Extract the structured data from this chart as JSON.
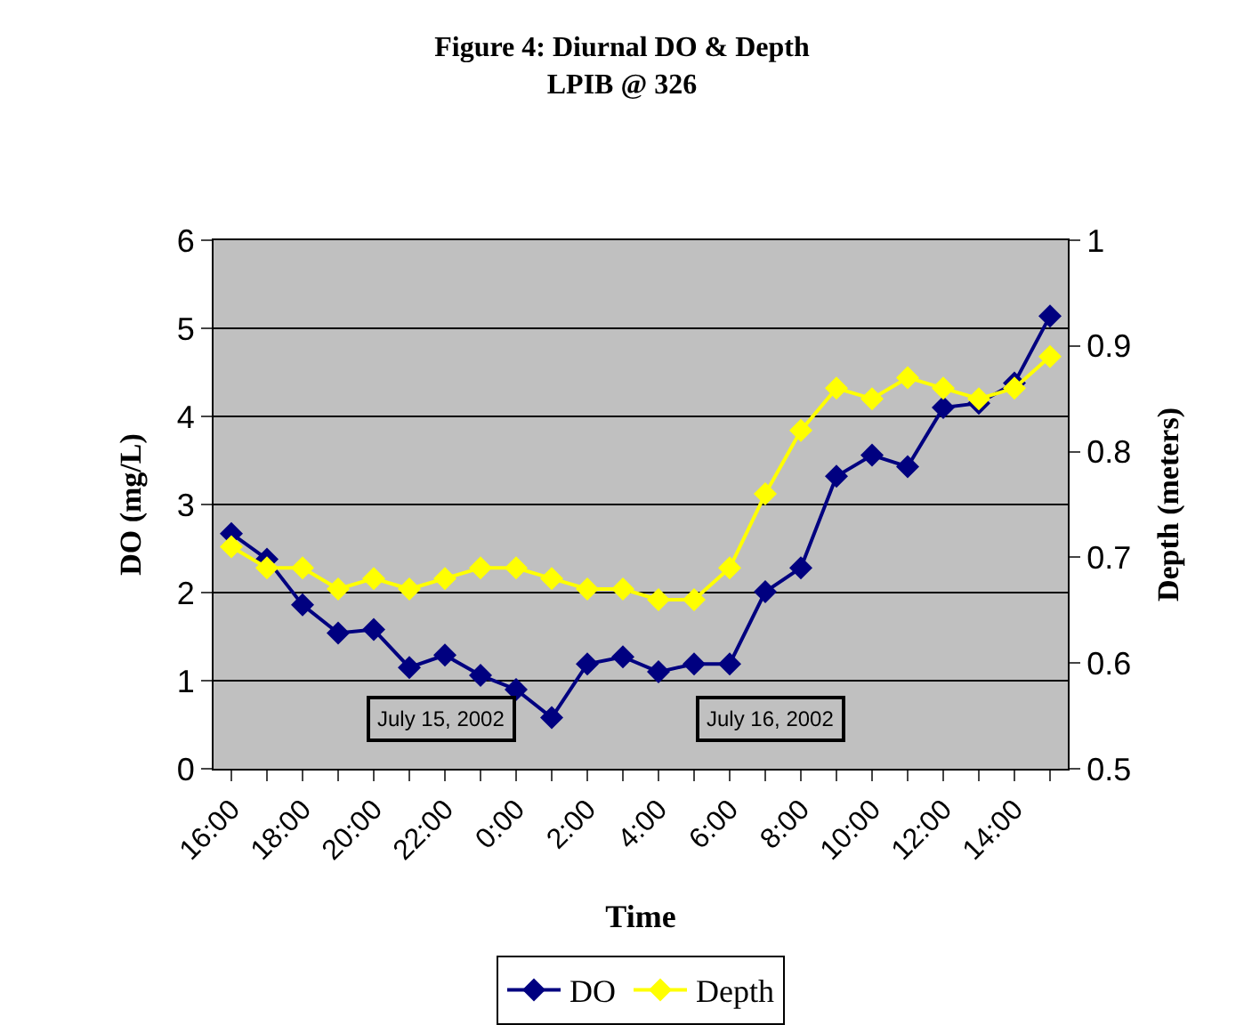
{
  "chart_data": {
    "type": "line",
    "title": "Figure 4: Diurnal DO & Depth\nLPIB @ 326",
    "xlabel": "Time",
    "ylabel": "DO (mg/L)",
    "y2label": "Depth (meters)",
    "categories": [
      "16:00",
      null,
      "18:00",
      null,
      "20:00",
      null,
      "22:00",
      null,
      "0:00",
      null,
      "2:00",
      null,
      "4:00",
      null,
      "6:00",
      null,
      "8:00",
      null,
      "10:00",
      null,
      "12:00",
      null,
      "14:00",
      null
    ],
    "series": [
      {
        "name": "DO",
        "color": "#000080",
        "values": [
          2.67,
          2.38,
          1.86,
          1.54,
          1.58,
          1.15,
          1.29,
          1.06,
          0.9,
          0.58,
          1.19,
          1.27,
          1.1,
          1.19,
          1.19,
          2.01,
          2.28,
          3.32,
          3.56,
          3.43,
          4.1,
          4.15,
          4.38,
          5.14
        ]
      },
      {
        "name": "Depth",
        "color": "#ffff00",
        "axis": "y2",
        "values": [
          0.71,
          0.69,
          0.69,
          0.67,
          0.68,
          0.67,
          0.68,
          0.69,
          0.69,
          0.68,
          0.67,
          0.67,
          0.66,
          0.66,
          0.69,
          0.76,
          0.82,
          0.86,
          0.85,
          0.87,
          0.86,
          0.85,
          0.86,
          0.89
        ]
      }
    ],
    "ylim": [
      0,
      6
    ],
    "yticks": [
      0,
      1,
      2,
      3,
      4,
      5,
      6
    ],
    "y2lim": [
      0.5,
      1
    ],
    "y2ticks": [
      0.5,
      0.6,
      0.7,
      0.8,
      0.9,
      1
    ],
    "annotations": [
      "July 15, 2002",
      "July 16, 2002"
    ],
    "grid": "y",
    "legend": "bottom",
    "marker": "diamond",
    "line_style": "solid"
  }
}
